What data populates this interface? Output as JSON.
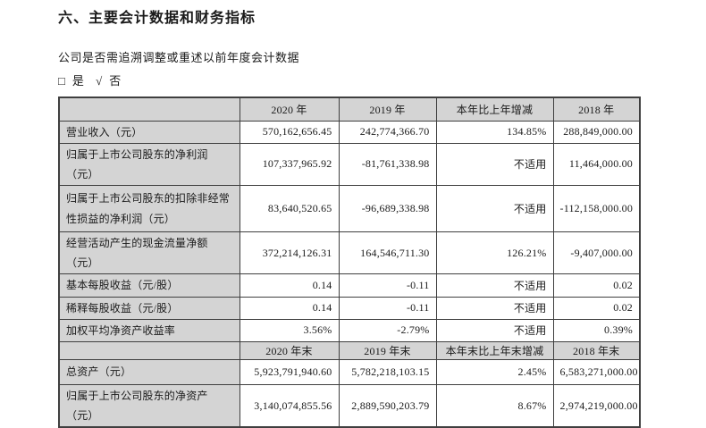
{
  "colors": {
    "page_bg": "#ffffff",
    "header_cell_bg": "#d4d4d4",
    "border": "#3f3f3f",
    "text": "#1a1a1a"
  },
  "page": {
    "section_title": "六、主要会计数据和财务指标",
    "question": "公司是否需追溯调整或重述以前年度会计数据",
    "answer": {
      "unchecked_icon": "□",
      "yes_label": "是",
      "check_icon": "√",
      "no_label": "否"
    }
  },
  "table": {
    "period_header": {
      "blank": "",
      "cols": [
        "2020 年",
        "2019 年",
        "本年比上年增减",
        "2018 年"
      ]
    },
    "period_rows": [
      {
        "label": "营业收入（元）",
        "values": [
          "570,162,656.45",
          "242,774,366.70",
          "134.85%",
          "288,849,000.00"
        ]
      },
      {
        "label": "归属于上市公司股东的净利润（元）",
        "values": [
          "107,337,965.92",
          "-81,761,338.98",
          "不适用",
          "11,464,000.00"
        ]
      },
      {
        "label": "归属于上市公司股东的扣除非经常性损益的净利润（元）",
        "values": [
          "83,640,520.65",
          "-96,689,338.98",
          "不适用",
          "-112,158,000.00"
        ]
      },
      {
        "label": "经营活动产生的现金流量净额（元）",
        "values": [
          "372,214,126.31",
          "164,546,711.30",
          "126.21%",
          "-9,407,000.00"
        ]
      },
      {
        "label": "基本每股收益（元/股）",
        "values": [
          "0.14",
          "-0.11",
          "不适用",
          "0.02"
        ]
      },
      {
        "label": "稀释每股收益（元/股）",
        "values": [
          "0.14",
          "-0.11",
          "不适用",
          "0.02"
        ]
      },
      {
        "label": "加权平均净资产收益率",
        "values": [
          "3.56%",
          "-2.79%",
          "不适用",
          "0.39%"
        ]
      }
    ],
    "period_end_header": {
      "blank": "",
      "cols": [
        "2020 年末",
        "2019 年末",
        "本年末比上年末增减",
        "2018 年末"
      ]
    },
    "period_end_rows": [
      {
        "label": "总资产（元）",
        "values": [
          "5,923,791,940.60",
          "5,782,218,103.15",
          "2.45%",
          "6,583,271,000.00"
        ]
      },
      {
        "label": "归属于上市公司股东的净资产（元）",
        "values": [
          "3,140,074,855.56",
          "2,889,590,203.79",
          "8.67%",
          "2,974,219,000.00"
        ]
      }
    ]
  }
}
